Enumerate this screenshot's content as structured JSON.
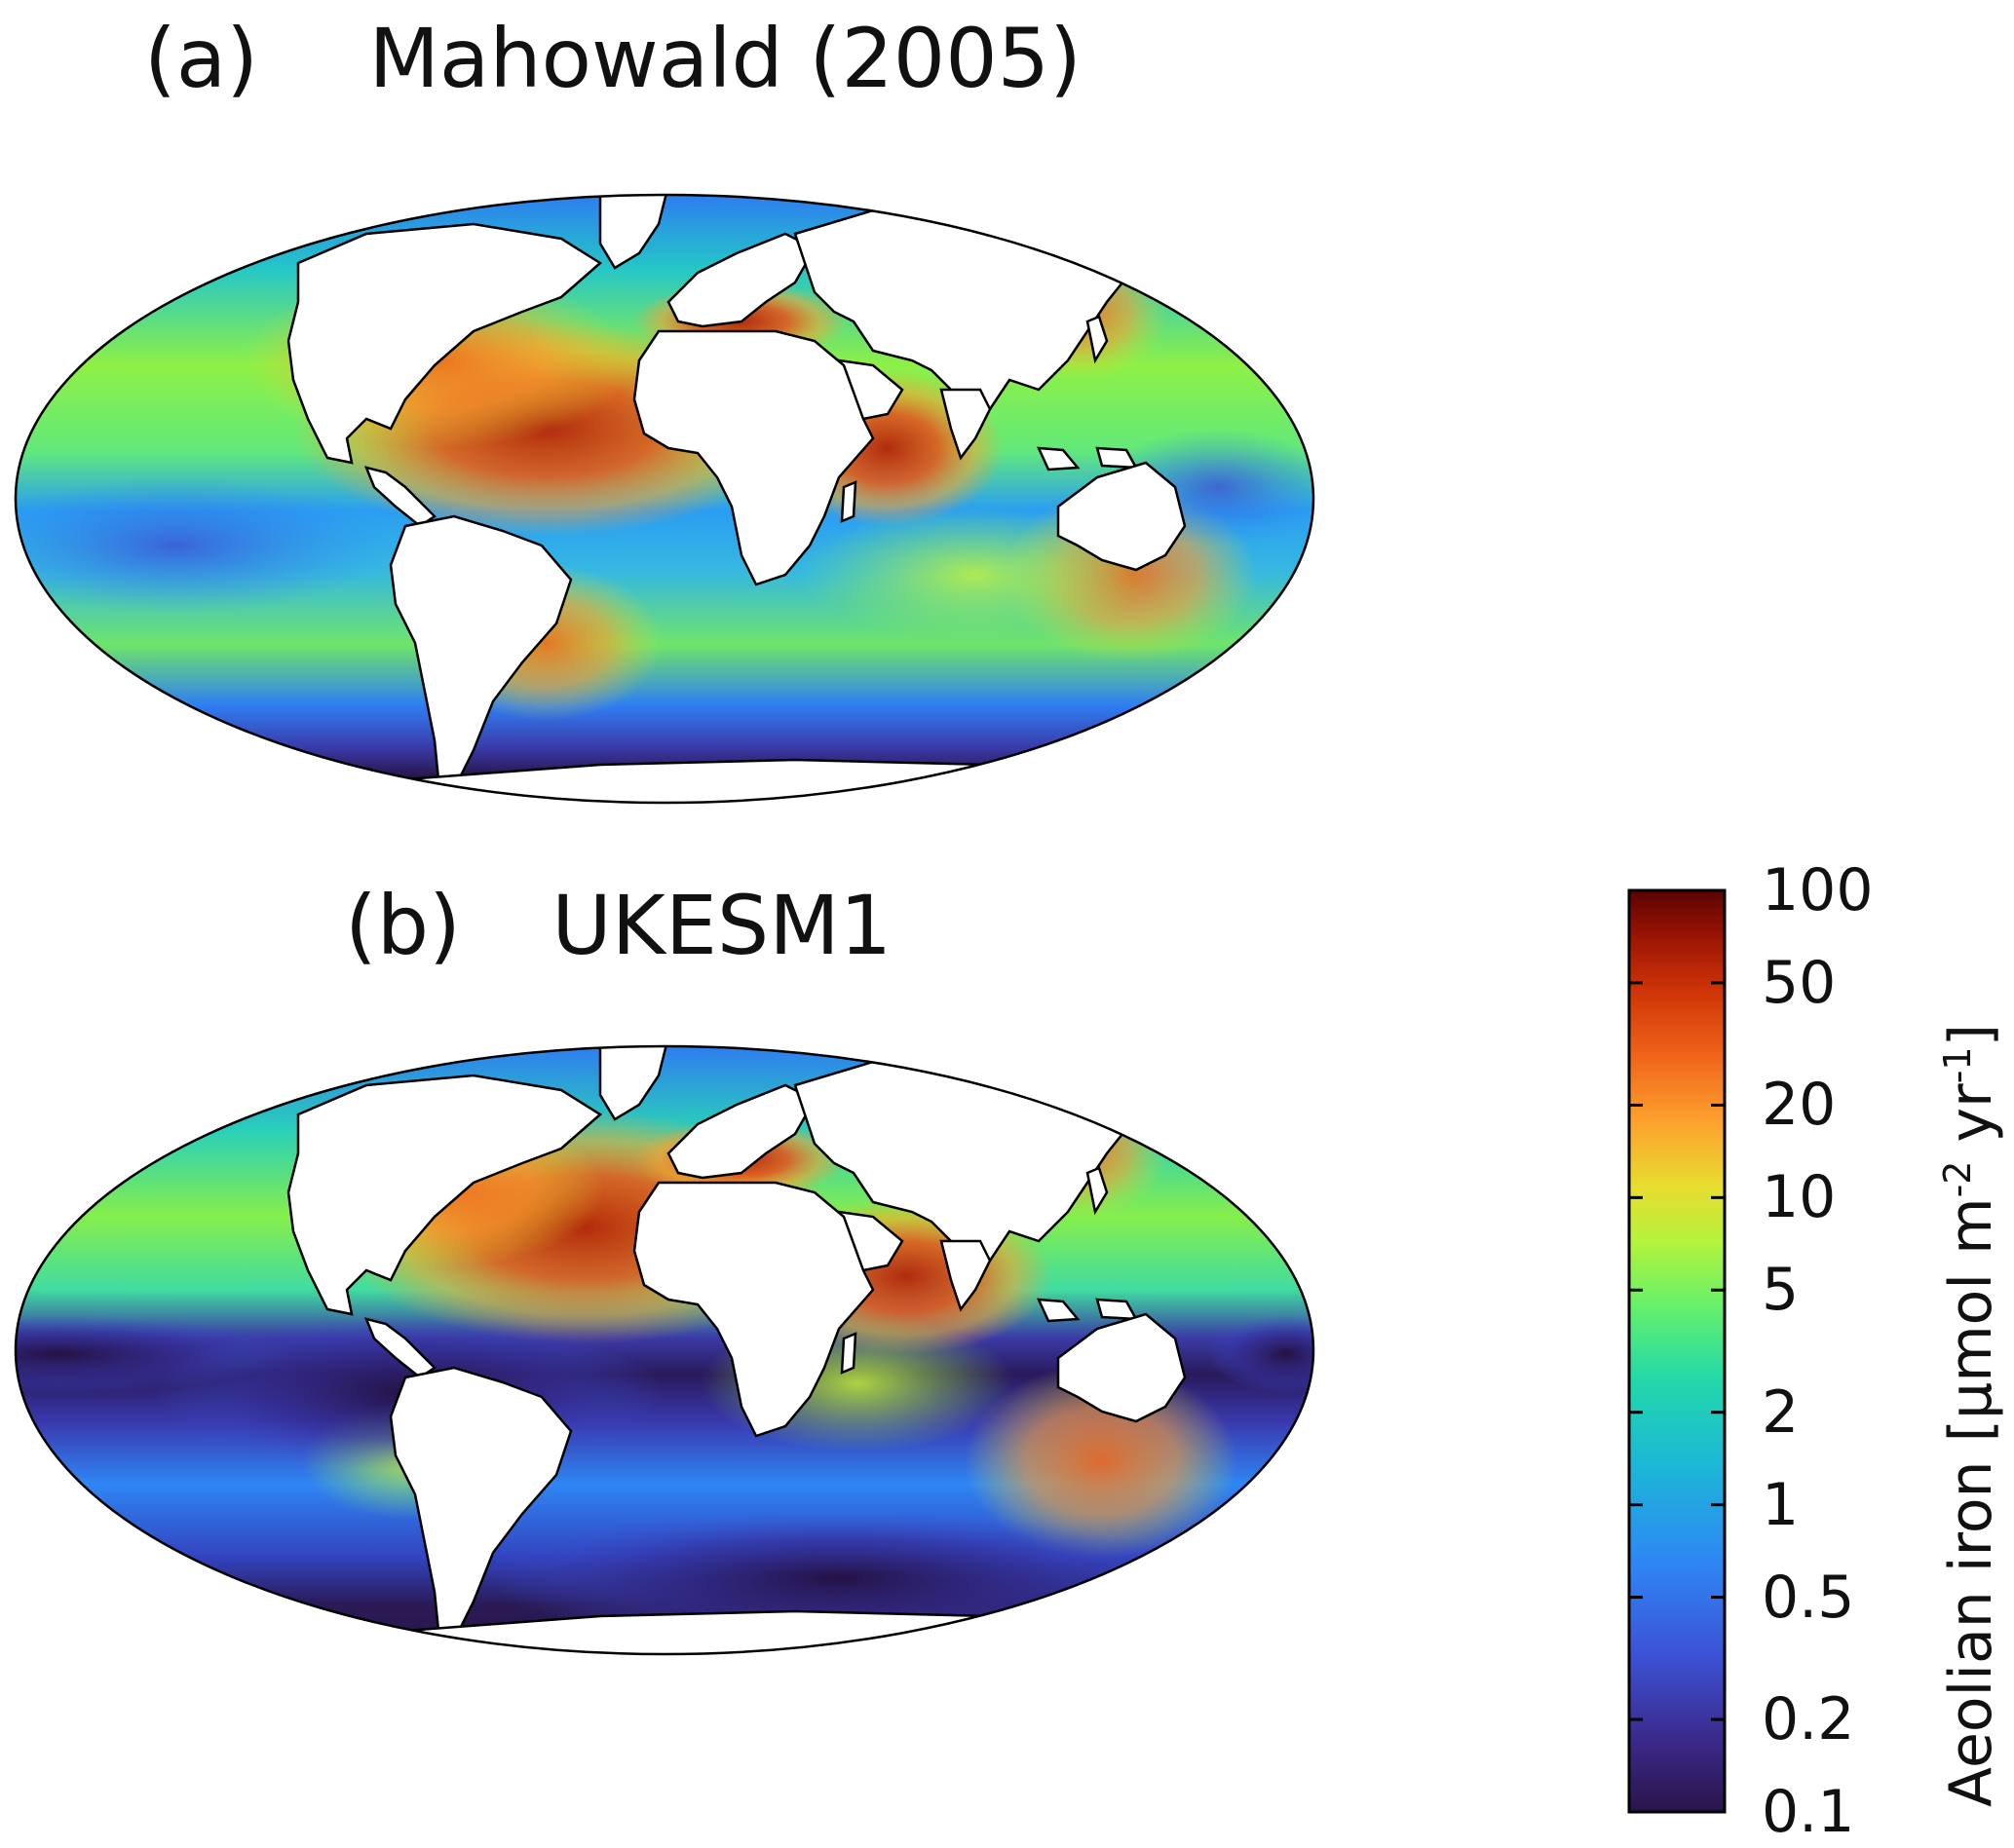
{
  "panels": [
    {
      "id": "a",
      "label": "(a)",
      "title": "Mahowald (2005)"
    },
    {
      "id": "b",
      "label": "(b)",
      "title": "UKESM1"
    }
  ],
  "colorbar": {
    "title_main": "Aeolian iron [µmol m",
    "title_exp1": "-2",
    "title_mid": " yr",
    "title_exp2": "-1",
    "title_end": "]",
    "scale": "log",
    "range": [
      0.1,
      100
    ],
    "ticks": [
      "100",
      "50",
      "20",
      "10",
      "5",
      "2",
      "1",
      "0.5",
      "0.2",
      "0.1"
    ],
    "colormap": "turbo"
  },
  "map": {
    "projection": "Mollweide",
    "land_fill": "#ffffff",
    "coastline": "#000000"
  }
}
